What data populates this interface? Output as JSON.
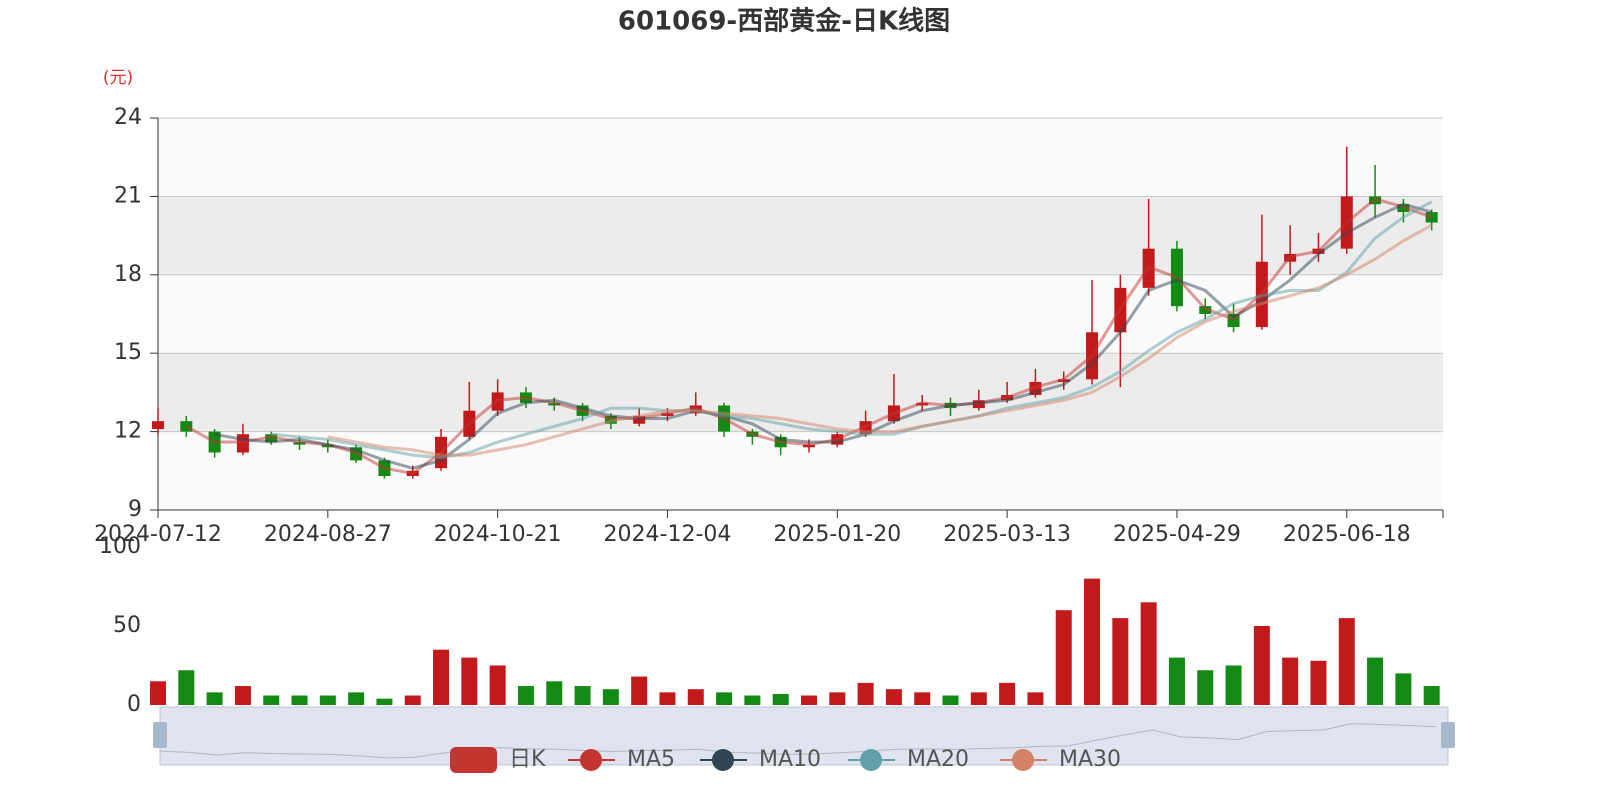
{
  "chart_data": {
    "type": "candlestick",
    "title": "601069-西部黄金-日K线图",
    "y_unit": "(元)",
    "categories": [
      "2024-07-12",
      null,
      null,
      null,
      null,
      null,
      "2024-08-27",
      null,
      null,
      null,
      null,
      null,
      "2024-10-21",
      null,
      null,
      null,
      null,
      null,
      "2024-12-04",
      null,
      null,
      null,
      null,
      null,
      "2025-01-20",
      null,
      null,
      null,
      null,
      null,
      "2025-03-13",
      null,
      null,
      null,
      null,
      null,
      "2025-04-29",
      null,
      null,
      null,
      null,
      null,
      "2025-06-18",
      null,
      null,
      null
    ],
    "ylim": [
      9,
      24
    ],
    "yticks": [
      9,
      12,
      15,
      18,
      21,
      24
    ],
    "grid": true,
    "up_color": "#c21a1a",
    "down_color": "#138a13",
    "series": [
      {
        "name": "日K",
        "type": "candlestick",
        "color": "#c23531",
        "values": [
          [
            12.1,
            12.4,
            11.9,
            12.9
          ],
          [
            12.4,
            12.0,
            11.8,
            12.6
          ],
          [
            12.0,
            11.2,
            11.0,
            12.1
          ],
          [
            11.2,
            11.9,
            11.1,
            12.3
          ],
          [
            11.9,
            11.6,
            11.5,
            12.0
          ],
          [
            11.6,
            11.5,
            11.3,
            11.8
          ],
          [
            11.5,
            11.4,
            11.2,
            11.7
          ],
          [
            11.4,
            10.9,
            10.8,
            11.5
          ],
          [
            10.9,
            10.3,
            10.2,
            11.0
          ],
          [
            10.3,
            10.5,
            10.2,
            10.7
          ],
          [
            10.6,
            11.8,
            10.5,
            12.1
          ],
          [
            11.8,
            12.8,
            11.7,
            13.9
          ],
          [
            12.8,
            13.5,
            12.6,
            14.0
          ],
          [
            13.5,
            13.1,
            12.9,
            13.7
          ],
          [
            13.1,
            13.0,
            12.8,
            13.3
          ],
          [
            13.0,
            12.6,
            12.4,
            13.1
          ],
          [
            12.6,
            12.3,
            12.1,
            12.7
          ],
          [
            12.3,
            12.6,
            12.2,
            12.9
          ],
          [
            12.6,
            12.7,
            12.4,
            12.9
          ],
          [
            12.7,
            13.0,
            12.6,
            13.5
          ],
          [
            13.0,
            12.0,
            11.8,
            13.1
          ],
          [
            12.0,
            11.8,
            11.5,
            12.1
          ],
          [
            11.8,
            11.4,
            11.1,
            11.9
          ],
          [
            11.4,
            11.5,
            11.2,
            11.7
          ],
          [
            11.5,
            11.9,
            11.4,
            12.0
          ],
          [
            11.9,
            12.4,
            11.8,
            12.8
          ],
          [
            12.4,
            13.0,
            12.3,
            14.2
          ],
          [
            13.0,
            13.1,
            12.8,
            13.4
          ],
          [
            13.1,
            12.9,
            12.6,
            13.3
          ],
          [
            12.9,
            13.2,
            12.8,
            13.6
          ],
          [
            13.2,
            13.4,
            13.1,
            13.9
          ],
          [
            13.4,
            13.9,
            13.3,
            14.4
          ],
          [
            13.9,
            14.0,
            13.6,
            14.3
          ],
          [
            14.0,
            15.8,
            13.8,
            17.8
          ],
          [
            15.8,
            17.5,
            13.7,
            18.0
          ],
          [
            17.5,
            19.0,
            17.2,
            20.9
          ],
          [
            19.0,
            16.8,
            16.6,
            19.3
          ],
          [
            16.8,
            16.5,
            16.3,
            17.1
          ],
          [
            16.5,
            16.0,
            15.8,
            16.9
          ],
          [
            16.0,
            18.5,
            15.9,
            20.3
          ],
          [
            18.5,
            18.8,
            18.0,
            19.9
          ],
          [
            18.8,
            19.0,
            18.5,
            19.6
          ],
          [
            19.0,
            21.0,
            18.8,
            22.9
          ],
          [
            21.0,
            20.7,
            20.2,
            22.2
          ],
          [
            20.7,
            20.4,
            20.0,
            20.9
          ],
          [
            20.4,
            20.0,
            19.7,
            20.5
          ]
        ]
      },
      {
        "name": "MA5",
        "color": "#c23531",
        "values": [
          null,
          12.2,
          11.6,
          11.6,
          11.8,
          11.6,
          11.5,
          11.2,
          10.6,
          10.4,
          11.2,
          12.3,
          13.2,
          13.3,
          13.1,
          12.8,
          12.5,
          12.5,
          12.7,
          12.9,
          12.5,
          11.9,
          11.6,
          11.5,
          11.7,
          12.2,
          12.7,
          13.1,
          13.0,
          13.1,
          13.3,
          13.7,
          14.0,
          14.9,
          16.7,
          18.3,
          17.9,
          16.7,
          16.3,
          17.3,
          18.7,
          18.9,
          20.0,
          20.9,
          20.6,
          20.2
        ]
      },
      {
        "name": "MA10",
        "color": "#2f4554",
        "values": [
          null,
          null,
          11.9,
          11.7,
          11.6,
          11.7,
          11.5,
          11.3,
          10.9,
          10.6,
          10.9,
          11.7,
          12.7,
          13.1,
          13.2,
          12.9,
          12.6,
          12.5,
          12.5,
          12.8,
          12.6,
          12.3,
          11.7,
          11.6,
          11.6,
          11.9,
          12.4,
          12.8,
          13.0,
          13.1,
          13.2,
          13.5,
          13.8,
          14.6,
          15.8,
          17.4,
          17.8,
          17.4,
          16.4,
          17.0,
          17.8,
          18.8,
          19.6,
          20.2,
          20.7,
          20.4
        ]
      },
      {
        "name": "MA20",
        "color": "#61a0a8",
        "values": [
          null,
          null,
          null,
          null,
          11.9,
          11.8,
          11.7,
          11.5,
          11.3,
          11.1,
          11.0,
          11.2,
          11.6,
          11.9,
          12.2,
          12.5,
          12.9,
          12.9,
          12.8,
          12.8,
          12.6,
          12.5,
          12.3,
          12.1,
          12.0,
          11.9,
          11.9,
          12.2,
          12.4,
          12.6,
          12.9,
          13.1,
          13.3,
          13.7,
          14.3,
          15.1,
          15.8,
          16.3,
          16.9,
          17.2,
          17.4,
          17.4,
          18.1,
          19.4,
          20.2,
          20.8
        ]
      },
      {
        "name": "MA30",
        "color": "#d48265",
        "values": [
          null,
          null,
          null,
          null,
          null,
          null,
          11.8,
          11.6,
          11.4,
          11.3,
          11.1,
          11.1,
          11.3,
          11.5,
          11.8,
          12.1,
          12.4,
          12.6,
          12.8,
          12.8,
          12.7,
          12.6,
          12.5,
          12.3,
          12.1,
          12.0,
          12.0,
          12.2,
          12.4,
          12.6,
          12.8,
          13.0,
          13.2,
          13.5,
          14.1,
          14.8,
          15.6,
          16.2,
          16.6,
          16.9,
          17.2,
          17.5,
          18.0,
          18.6,
          19.3,
          19.9
        ]
      }
    ],
    "volume": {
      "ylim": [
        0,
        100
      ],
      "yticks": [
        0,
        50,
        100
      ],
      "values": [
        15,
        22,
        8,
        12,
        6,
        6,
        6,
        8,
        4,
        6,
        35,
        30,
        25,
        12,
        15,
        12,
        10,
        18,
        8,
        10,
        8,
        6,
        7,
        6,
        8,
        14,
        10,
        8,
        6,
        8,
        14,
        8,
        60,
        80,
        55,
        65,
        30,
        22,
        25,
        50,
        30,
        28,
        55,
        30,
        20,
        12
      ]
    }
  }
}
